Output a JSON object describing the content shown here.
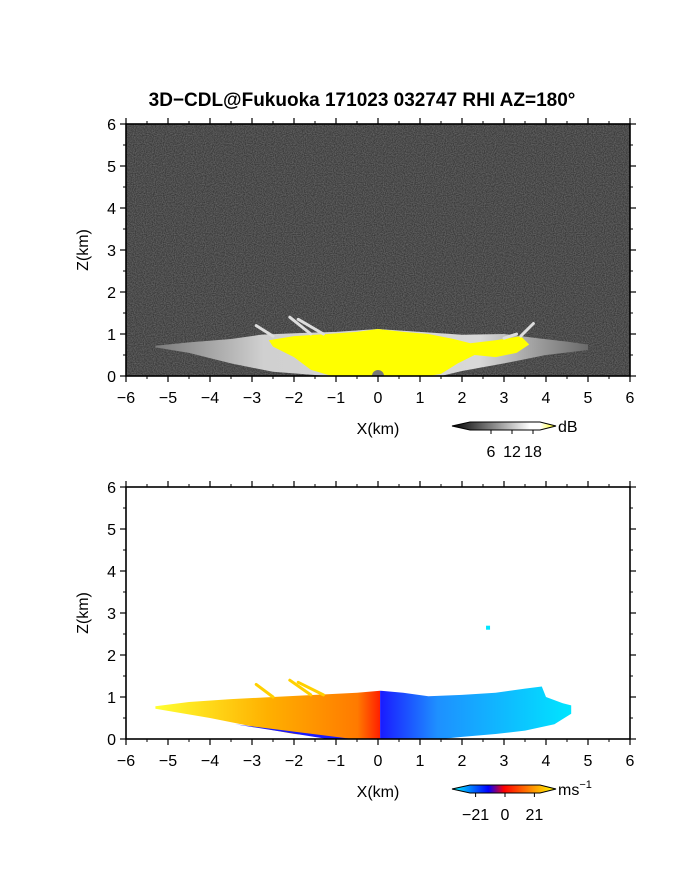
{
  "title": "3D−CDL@Fukuoka 171023 032747 RHI AZ=180°",
  "chart_data": [
    {
      "type": "heatmap",
      "name": "reflectivity",
      "xlabel": "X(km)",
      "ylabel": "Z(km)",
      "xlim": [
        -6,
        6
      ],
      "ylim": [
        0,
        6
      ],
      "xticks": [
        "−6",
        "−5",
        "−4",
        "−3",
        "−2",
        "−1",
        "0",
        "1",
        "2",
        "3",
        "4",
        "5",
        "6"
      ],
      "yticks": [
        "0",
        "1",
        "2",
        "3",
        "4",
        "5",
        "6"
      ],
      "background": "noise",
      "colorbar": {
        "unit": "dB",
        "ticks": [
          "6",
          "12",
          "18"
        ],
        "range": [
          0,
          20
        ],
        "colors": [
          "#000000",
          "#ffffff",
          "#ffff00"
        ]
      },
      "plume": {
        "left_x": -5.3,
        "right_x": 5.0,
        "left_top_z": 0.85,
        "right_top_z": 0.75,
        "core_x": [
          -2.6,
          3.6
        ],
        "core_top_z": 1.1
      }
    },
    {
      "type": "heatmap",
      "name": "radial_velocity",
      "xlabel": "X(km)",
      "ylabel": "Z(km)",
      "xlim": [
        -6,
        6
      ],
      "ylim": [
        0,
        6
      ],
      "xticks": [
        "−6",
        "−5",
        "−4",
        "−3",
        "−2",
        "−1",
        "0",
        "1",
        "2",
        "3",
        "4",
        "5",
        "6"
      ],
      "yticks": [
        "0",
        "1",
        "2",
        "3",
        "4",
        "5",
        "6"
      ],
      "background": "white",
      "colorbar": {
        "unit": "ms",
        "unit_sup": "−1",
        "ticks": [
          "−21",
          "0",
          "21"
        ],
        "range": [
          -25,
          25
        ],
        "colors": [
          "#00ffff",
          "#0000ff",
          "#ff0000",
          "#ffff00"
        ]
      },
      "plume": {
        "left_x": -5.3,
        "right_x": 4.6,
        "left_top_z": 0.85,
        "right_top_z": 1.25,
        "positive_side": "left",
        "negative_side": "right"
      }
    }
  ]
}
